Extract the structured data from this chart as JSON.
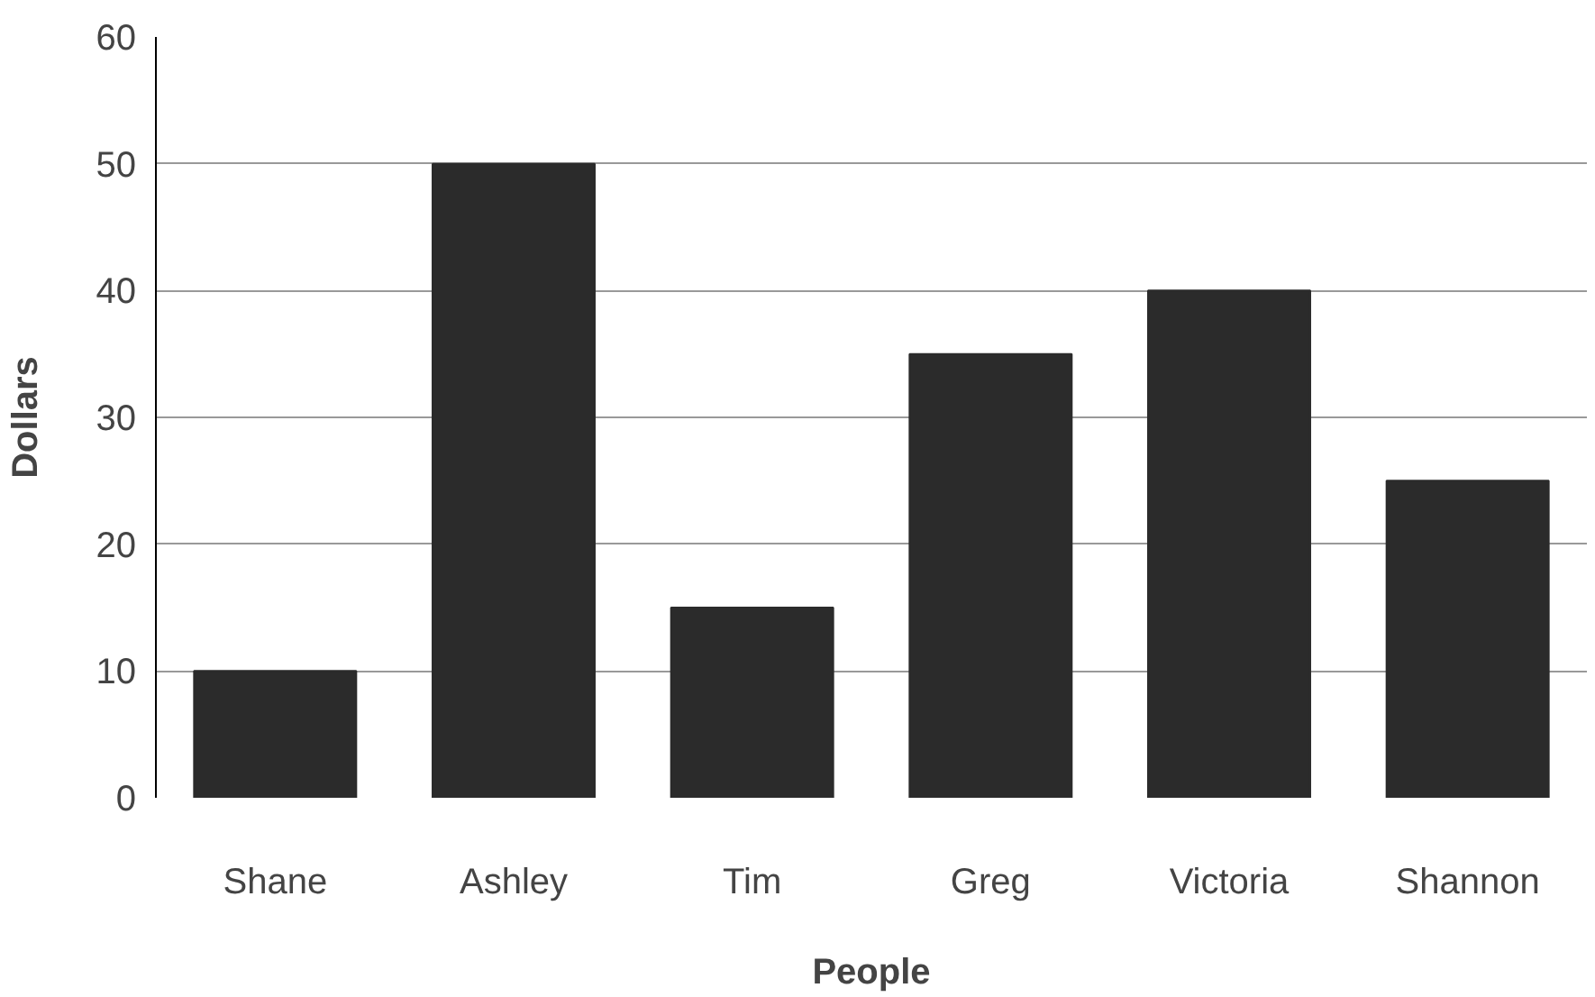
{
  "chart_data": {
    "type": "bar",
    "xlabel": "People",
    "ylabel": "Dollars",
    "categories": [
      "Shane",
      "Ashley",
      "Tim",
      "Greg",
      "Victoria",
      "Shannon"
    ],
    "values": [
      10,
      50,
      15,
      35,
      40,
      25
    ],
    "color": "#2b2b2b",
    "ylim": [
      0,
      60
    ],
    "yticks": [
      0,
      10,
      20,
      30,
      40,
      50,
      60
    ],
    "grid": "y"
  }
}
